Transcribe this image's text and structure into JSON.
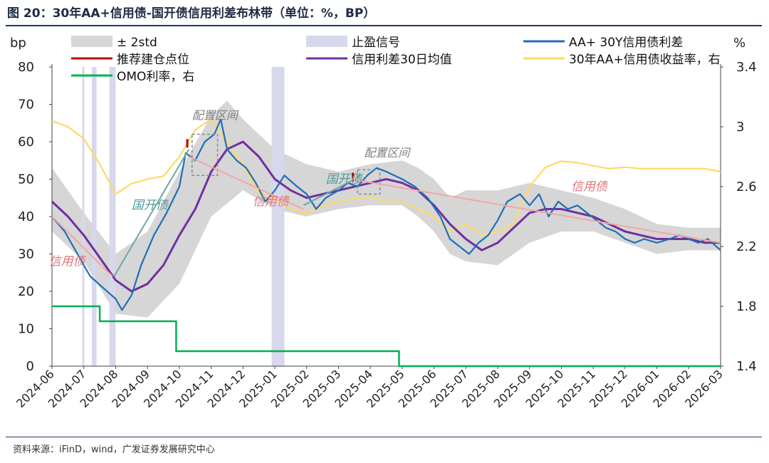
{
  "figure": {
    "title": "图 20：30年AA+信用债-国开债信用利差布林带（单位：%，BP）",
    "source": "资料来源：iFinD，wind，广发证券发展研究中心"
  },
  "chart_data": {
    "type": "line",
    "left_axis": {
      "unit": "bp",
      "ticks": [
        0,
        10,
        20,
        30,
        40,
        50,
        60,
        70,
        80
      ],
      "range": [
        0,
        80
      ]
    },
    "right_axis": {
      "unit": "%",
      "ticks": [
        "1.4",
        "1.8",
        "2.2",
        "2.6",
        "3",
        "3.4"
      ],
      "range": [
        1.4,
        3.4
      ]
    },
    "x_ticks": [
      "2024-06",
      "2024-07",
      "2024-08",
      "2024-09",
      "2024-10",
      "2024-11",
      "2024-12",
      "2025-01",
      "2025-02",
      "2025-03",
      "2025-04",
      "2025-05",
      "2025-06",
      "2025-07",
      "2025-08",
      "2025-09",
      "2025-10",
      "2025-11",
      "2025-12",
      "2026-01",
      "2026-02",
      "2026-03"
    ],
    "legend": [
      {
        "label": "± 2std",
        "style": "area",
        "color": "#d6d6d6"
      },
      {
        "label": "止盈信号",
        "style": "bar",
        "color": "#d8d8ec"
      },
      {
        "label": "AA+ 30Y信用债利差",
        "style": "line",
        "color": "#1f6fb5"
      },
      {
        "label": "推荐建仓点位",
        "style": "line",
        "color": "#c00000"
      },
      {
        "label": "信用利差30日均值",
        "style": "line",
        "color": "#7030a0"
      },
      {
        "label": "30年AA+信用债收益率，右",
        "style": "line",
        "color": "#ffd966"
      },
      {
        "label": "OMO利率，右",
        "style": "line",
        "color": "#00b050"
      }
    ],
    "series": [
      {
        "name": "AA+ 30Y信用债利差",
        "axis": "left",
        "points": [
          [
            0,
            40
          ],
          [
            0.4,
            36
          ],
          [
            0.8,
            30
          ],
          [
            1.2,
            24
          ],
          [
            1.6,
            21
          ],
          [
            2.0,
            18
          ],
          [
            2.2,
            15
          ],
          [
            2.5,
            19
          ],
          [
            2.8,
            27
          ],
          [
            3.2,
            35
          ],
          [
            3.6,
            41
          ],
          [
            4.0,
            48
          ],
          [
            4.2,
            57
          ],
          [
            4.5,
            55
          ],
          [
            4.8,
            60
          ],
          [
            5.1,
            62
          ],
          [
            5.3,
            66
          ],
          [
            5.5,
            58
          ],
          [
            5.8,
            55
          ],
          [
            6.1,
            53
          ],
          [
            6.4,
            49
          ],
          [
            6.7,
            44
          ],
          [
            7.0,
            47
          ],
          [
            7.3,
            51
          ],
          [
            7.7,
            48
          ],
          [
            8.0,
            46
          ],
          [
            8.3,
            42
          ],
          [
            8.6,
            45
          ],
          [
            9.0,
            47
          ],
          [
            9.3,
            49
          ],
          [
            9.6,
            48
          ],
          [
            9.9,
            51
          ],
          [
            10.2,
            53
          ],
          [
            10.5,
            52
          ],
          [
            11.0,
            50
          ],
          [
            11.4,
            48
          ],
          [
            11.8,
            45
          ],
          [
            12.2,
            40
          ],
          [
            12.5,
            34
          ],
          [
            12.8,
            32
          ],
          [
            13.1,
            30
          ],
          [
            13.4,
            33
          ],
          [
            13.7,
            35
          ],
          [
            14.0,
            39
          ],
          [
            14.3,
            44
          ],
          [
            14.7,
            46
          ],
          [
            15.0,
            43
          ],
          [
            15.3,
            46
          ],
          [
            15.6,
            40
          ],
          [
            15.9,
            44
          ],
          [
            16.2,
            42
          ],
          [
            16.5,
            43
          ],
          [
            16.8,
            41
          ],
          [
            17.1,
            39
          ],
          [
            17.4,
            37
          ],
          [
            17.7,
            36
          ],
          [
            18.0,
            34
          ],
          [
            18.3,
            33
          ],
          [
            18.6,
            34
          ],
          [
            19.0,
            33
          ],
          [
            19.4,
            34
          ],
          [
            19.7,
            35
          ],
          [
            20.0,
            34
          ],
          [
            20.3,
            33
          ],
          [
            20.6,
            34
          ],
          [
            21.0,
            31
          ]
        ]
      },
      {
        "name": "信用利差30日均值",
        "axis": "left",
        "points": [
          [
            0,
            44
          ],
          [
            0.5,
            40
          ],
          [
            1.0,
            35
          ],
          [
            1.5,
            29
          ],
          [
            2.0,
            23
          ],
          [
            2.5,
            20
          ],
          [
            3.0,
            22
          ],
          [
            3.5,
            27
          ],
          [
            4.0,
            35
          ],
          [
            4.5,
            42
          ],
          [
            5.0,
            52
          ],
          [
            5.5,
            58
          ],
          [
            6.0,
            60
          ],
          [
            6.5,
            56
          ],
          [
            7.0,
            50
          ],
          [
            7.5,
            47
          ],
          [
            8.0,
            45
          ],
          [
            8.5,
            46
          ],
          [
            9.0,
            47
          ],
          [
            9.5,
            48
          ],
          [
            10.0,
            49
          ],
          [
            10.5,
            50
          ],
          [
            11.0,
            49
          ],
          [
            11.5,
            47
          ],
          [
            12.0,
            43
          ],
          [
            12.5,
            38
          ],
          [
            13.0,
            34
          ],
          [
            13.5,
            31
          ],
          [
            14.0,
            33
          ],
          [
            14.5,
            37
          ],
          [
            15.0,
            41
          ],
          [
            15.5,
            42
          ],
          [
            16.0,
            42
          ],
          [
            16.5,
            41
          ],
          [
            17.0,
            40
          ],
          [
            17.5,
            38
          ],
          [
            18.0,
            36
          ],
          [
            18.5,
            35
          ],
          [
            19.0,
            34
          ],
          [
            19.5,
            34
          ],
          [
            20.0,
            34
          ],
          [
            20.5,
            33
          ],
          [
            21.0,
            33
          ]
        ]
      },
      {
        "name": "30年AA+信用债收益率，右",
        "axis": "right",
        "points": [
          [
            0,
            3.04
          ],
          [
            0.5,
            3.0
          ],
          [
            1.0,
            2.92
          ],
          [
            1.5,
            2.75
          ],
          [
            2.0,
            2.55
          ],
          [
            2.5,
            2.62
          ],
          [
            3.0,
            2.65
          ],
          [
            3.5,
            2.67
          ],
          [
            4.0,
            2.8
          ],
          [
            4.5,
            2.98
          ],
          [
            5.0,
            3.05
          ],
          [
            5.5,
            2.9
          ],
          [
            6.0,
            2.75
          ],
          [
            6.5,
            2.55
          ],
          [
            7.0,
            2.52
          ],
          [
            7.5,
            2.45
          ],
          [
            8.0,
            2.42
          ],
          [
            8.5,
            2.47
          ],
          [
            9.0,
            2.5
          ],
          [
            9.5,
            2.52
          ],
          [
            10.0,
            2.53
          ],
          [
            10.5,
            2.5
          ],
          [
            11.0,
            2.5
          ],
          [
            11.5,
            2.45
          ],
          [
            12.0,
            2.4
          ],
          [
            12.5,
            2.3
          ],
          [
            13.0,
            2.35
          ],
          [
            13.5,
            2.28
          ],
          [
            14.0,
            2.3
          ],
          [
            14.5,
            2.35
          ],
          [
            15.0,
            2.6
          ],
          [
            15.5,
            2.73
          ],
          [
            16.0,
            2.77
          ],
          [
            16.5,
            2.76
          ],
          [
            17.0,
            2.74
          ],
          [
            17.5,
            2.72
          ],
          [
            18.0,
            2.73
          ],
          [
            18.5,
            2.72
          ],
          [
            19.0,
            2.72
          ],
          [
            19.5,
            2.72
          ],
          [
            20.0,
            2.72
          ],
          [
            20.5,
            2.72
          ],
          [
            21.0,
            2.7
          ]
        ]
      },
      {
        "name": "OMO利率，右",
        "axis": "right",
        "points": [
          [
            0,
            1.8
          ],
          [
            1.5,
            1.8
          ],
          [
            1.5,
            1.7
          ],
          [
            3.9,
            1.7
          ],
          [
            3.9,
            1.5
          ],
          [
            10.9,
            1.5
          ],
          [
            10.9,
            1.4
          ],
          [
            21.0,
            1.4
          ]
        ]
      },
      {
        "name": "推荐建仓点位",
        "axis": "left",
        "points": [
          [
            4.25,
            59
          ],
          [
            9.45,
            50
          ]
        ]
      }
    ],
    "band": {
      "name": "± 2std",
      "upper": [
        [
          0,
          53
        ],
        [
          1,
          41
        ],
        [
          2,
          30
        ],
        [
          3,
          36
        ],
        [
          4,
          52
        ],
        [
          5,
          67
        ],
        [
          5.5,
          71
        ],
        [
          6,
          66
        ],
        [
          7,
          58
        ],
        [
          8,
          54
        ],
        [
          9,
          52
        ],
        [
          10,
          54
        ],
        [
          11,
          55
        ],
        [
          11.5,
          53
        ],
        [
          12,
          50
        ],
        [
          12.5,
          45
        ],
        [
          13,
          47
        ],
        [
          14,
          47
        ],
        [
          15,
          49
        ],
        [
          15.5,
          48
        ],
        [
          16,
          47
        ],
        [
          17,
          45
        ],
        [
          18,
          42
        ],
        [
          19,
          38
        ],
        [
          20,
          37
        ],
        [
          21,
          37
        ]
      ],
      "lower": [
        [
          0,
          36
        ],
        [
          1,
          28
        ],
        [
          2,
          14
        ],
        [
          3,
          13
        ],
        [
          4,
          22
        ],
        [
          5,
          40
        ],
        [
          6,
          47
        ],
        [
          7,
          42
        ],
        [
          8,
          40
        ],
        [
          9,
          42
        ],
        [
          10,
          43
        ],
        [
          11,
          43
        ],
        [
          11.5,
          40
        ],
        [
          12,
          36
        ],
        [
          12.5,
          30
        ],
        [
          13,
          28
        ],
        [
          14,
          27
        ],
        [
          15,
          33
        ],
        [
          16,
          36
        ],
        [
          17,
          36
        ],
        [
          18,
          33
        ],
        [
          19,
          30
        ],
        [
          20,
          31
        ],
        [
          21,
          31
        ]
      ]
    },
    "signal_bars": [
      [
        0.95,
        1.0
      ],
      [
        1.25,
        1.4
      ],
      [
        1.8,
        2.0
      ],
      [
        6.9,
        7.3
      ]
    ],
    "annotations": {
      "allocation_labels": [
        "配置区间",
        "配置区间"
      ],
      "trend_labels": [
        "信用债",
        "国开债",
        "信用债",
        "国开债",
        "信用债"
      ]
    }
  }
}
